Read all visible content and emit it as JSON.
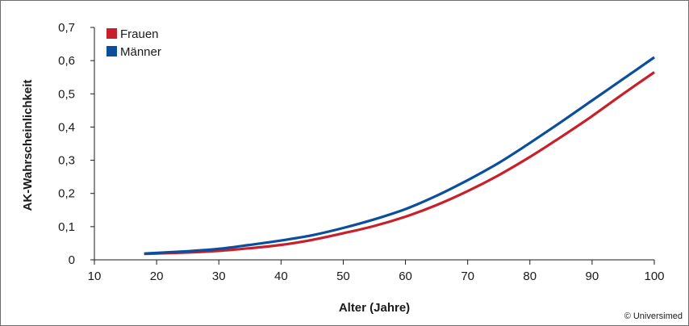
{
  "chart_data": {
    "type": "line",
    "title": "",
    "xlabel": "Alter (Jahre)",
    "ylabel": "AK-Wahrscheinlichkeit",
    "xlim": [
      10,
      100
    ],
    "ylim": [
      0,
      0.7
    ],
    "x_ticks": [
      10,
      20,
      30,
      40,
      50,
      60,
      70,
      80,
      90,
      100
    ],
    "x_tick_labels": [
      "10",
      "20",
      "30",
      "40",
      "50",
      "60",
      "70",
      "80",
      "90",
      "100"
    ],
    "y_ticks": [
      0,
      0.1,
      0.2,
      0.3,
      0.4,
      0.5,
      0.6,
      0.7
    ],
    "y_tick_labels": [
      "0",
      "0,1",
      "0,2",
      "0,3",
      "0,4",
      "0,5",
      "0,6",
      "0,7"
    ],
    "grid": false,
    "legend_position": "top-left",
    "series": [
      {
        "name": "Frauen",
        "color": "#c8202a",
        "x": [
          18,
          25,
          30,
          35,
          40,
          45,
          50,
          55,
          60,
          65,
          70,
          75,
          80,
          85,
          90,
          95,
          100
        ],
        "y": [
          0.018,
          0.022,
          0.027,
          0.035,
          0.045,
          0.06,
          0.08,
          0.102,
          0.13,
          0.165,
          0.207,
          0.255,
          0.31,
          0.37,
          0.433,
          0.5,
          0.565
        ]
      },
      {
        "name": "Männer",
        "color": "#0a4f9c",
        "x": [
          18,
          25,
          30,
          35,
          40,
          45,
          50,
          55,
          60,
          65,
          70,
          75,
          80,
          85,
          90,
          95,
          100
        ],
        "y": [
          0.019,
          0.026,
          0.033,
          0.045,
          0.058,
          0.074,
          0.096,
          0.122,
          0.153,
          0.193,
          0.24,
          0.292,
          0.352,
          0.415,
          0.48,
          0.545,
          0.61
        ]
      }
    ]
  },
  "credit": "© Universimed"
}
